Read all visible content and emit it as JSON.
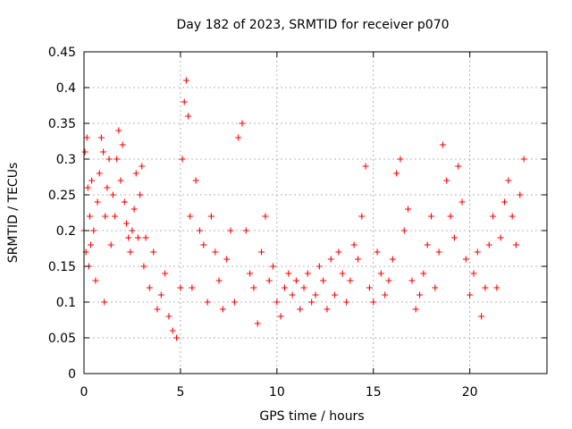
{
  "chart_data": {
    "type": "scatter",
    "title": "Day 182 of 2023, SRMTID for receiver p070",
    "xlabel": "GPS time / hours",
    "ylabel": "SRMTID / TECUs",
    "xlim": [
      0,
      24
    ],
    "ylim": [
      0,
      0.45
    ],
    "xticks": [
      0,
      5,
      10,
      15,
      20
    ],
    "xtick_labels": [
      "0",
      "5",
      "10",
      "15",
      "20"
    ],
    "yticks": [
      0,
      0.05,
      0.1,
      0.15,
      0.2,
      0.25,
      0.3,
      0.35,
      0.4,
      0.45
    ],
    "ytick_labels": [
      "0",
      "0.05",
      "0.1",
      "0.15",
      "0.2",
      "0.25",
      "0.3",
      "0.35",
      "0.4",
      "0.45"
    ],
    "grid": true,
    "marker": "+",
    "color": "#ff0000",
    "series": [
      {
        "name": "SRMTID",
        "x": [
          0.0,
          0.05,
          0.1,
          0.15,
          0.2,
          0.25,
          0.3,
          0.35,
          0.4,
          0.5,
          0.6,
          0.7,
          0.8,
          0.9,
          1.0,
          1.05,
          1.1,
          1.2,
          1.3,
          1.4,
          1.5,
          1.6,
          1.7,
          1.8,
          1.9,
          2.0,
          2.1,
          2.2,
          2.3,
          2.4,
          2.5,
          2.6,
          2.7,
          2.8,
          2.9,
          3.0,
          3.1,
          3.2,
          3.4,
          3.6,
          3.8,
          4.0,
          4.2,
          4.4,
          4.6,
          4.8,
          5.0,
          5.1,
          5.2,
          5.3,
          5.4,
          5.5,
          5.6,
          5.8,
          6.0,
          6.2,
          6.4,
          6.6,
          6.8,
          7.0,
          7.2,
          7.4,
          7.6,
          7.8,
          8.0,
          8.2,
          8.4,
          8.6,
          8.8,
          9.0,
          9.2,
          9.4,
          9.6,
          9.8,
          10.0,
          10.2,
          10.4,
          10.6,
          10.8,
          11.0,
          11.2,
          11.4,
          11.6,
          11.8,
          12.0,
          12.2,
          12.4,
          12.6,
          12.8,
          13.0,
          13.2,
          13.4,
          13.6,
          13.8,
          14.0,
          14.2,
          14.4,
          14.6,
          14.8,
          15.0,
          15.2,
          15.4,
          15.6,
          15.8,
          16.0,
          16.2,
          16.4,
          16.6,
          16.8,
          17.0,
          17.2,
          17.4,
          17.6,
          17.8,
          18.0,
          18.2,
          18.4,
          18.6,
          18.8,
          19.0,
          19.2,
          19.4,
          19.6,
          19.8,
          20.0,
          20.2,
          20.4,
          20.6,
          20.8,
          21.0,
          21.2,
          21.4,
          21.6,
          21.8,
          22.0,
          22.2,
          22.4,
          22.6,
          22.8
        ],
        "y": [
          0.2,
          0.31,
          0.17,
          0.33,
          0.26,
          0.15,
          0.22,
          0.18,
          0.27,
          0.2,
          0.13,
          0.24,
          0.28,
          0.33,
          0.31,
          0.1,
          0.22,
          0.26,
          0.3,
          0.18,
          0.25,
          0.22,
          0.3,
          0.34,
          0.27,
          0.32,
          0.24,
          0.21,
          0.19,
          0.17,
          0.2,
          0.23,
          0.28,
          0.19,
          0.25,
          0.29,
          0.15,
          0.19,
          0.12,
          0.17,
          0.09,
          0.11,
          0.14,
          0.08,
          0.06,
          0.05,
          0.12,
          0.3,
          0.38,
          0.41,
          0.36,
          0.22,
          0.12,
          0.27,
          0.2,
          0.18,
          0.1,
          0.22,
          0.17,
          0.13,
          0.09,
          0.16,
          0.2,
          0.1,
          0.33,
          0.35,
          0.2,
          0.14,
          0.12,
          0.07,
          0.17,
          0.22,
          0.13,
          0.15,
          0.1,
          0.08,
          0.12,
          0.14,
          0.11,
          0.13,
          0.09,
          0.12,
          0.14,
          0.1,
          0.11,
          0.15,
          0.13,
          0.09,
          0.16,
          0.11,
          0.17,
          0.14,
          0.1,
          0.13,
          0.18,
          0.16,
          0.22,
          0.29,
          0.12,
          0.1,
          0.17,
          0.14,
          0.11,
          0.13,
          0.16,
          0.28,
          0.3,
          0.2,
          0.23,
          0.13,
          0.09,
          0.11,
          0.14,
          0.18,
          0.22,
          0.12,
          0.17,
          0.32,
          0.27,
          0.22,
          0.19,
          0.29,
          0.24,
          0.16,
          0.11,
          0.14,
          0.17,
          0.08,
          0.12,
          0.18,
          0.22,
          0.12,
          0.19,
          0.24,
          0.27,
          0.22,
          0.18,
          0.25,
          0.3
        ]
      }
    ]
  }
}
